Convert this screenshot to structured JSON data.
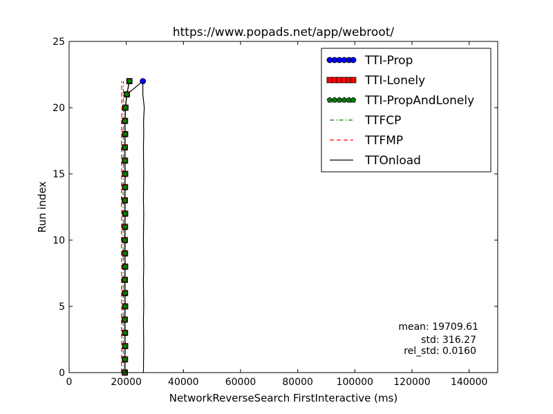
{
  "chart_data": {
    "type": "line",
    "title": "https://www.popads.net/app/webroot/",
    "xlabel": "NetworkReverseSearch FirstInteractive (ms)",
    "ylabel": "Run index",
    "xlim": [
      0,
      150000
    ],
    "ylim": [
      0,
      25
    ],
    "xticks": [
      0,
      20000,
      40000,
      60000,
      80000,
      100000,
      120000,
      140000
    ],
    "xtick_labels": [
      "0",
      "20000",
      "40000",
      "60000",
      "80000",
      "100000",
      "120000",
      "140000"
    ],
    "yticks": [
      0,
      5,
      10,
      15,
      20,
      25
    ],
    "ytick_labels": [
      "0",
      "5",
      "10",
      "15",
      "20",
      "25"
    ],
    "grid": false,
    "legend_position": "top-right",
    "y": [
      0,
      1,
      2,
      3,
      4,
      5,
      6,
      7,
      8,
      9,
      10,
      11,
      12,
      13,
      14,
      15,
      16,
      17,
      18,
      19,
      20,
      21,
      22
    ],
    "series": [
      {
        "name": "TTI-Prop",
        "color": "#0000ff",
        "marker": "circle",
        "line": "solid",
        "x": [
          19500,
          19550,
          19600,
          19550,
          19500,
          19600,
          19550,
          19500,
          19600,
          19550,
          19500,
          19550,
          19600,
          19500,
          19550,
          19600,
          19550,
          19500,
          19600,
          19550,
          19700,
          20200,
          25800
        ]
      },
      {
        "name": "TTI-Lonely",
        "color": "#ff0000",
        "marker": "square",
        "line": "solid",
        "x": [
          19500,
          19550,
          19600,
          19550,
          19500,
          19600,
          19550,
          19500,
          19600,
          19550,
          19500,
          19550,
          19600,
          19500,
          19550,
          19600,
          19550,
          19500,
          19600,
          19550,
          19700,
          20200,
          21100
        ]
      },
      {
        "name": "TTI-PropAndLonely",
        "color": "#008000",
        "marker": "pentagon",
        "line": "solid",
        "x": [
          19500,
          19550,
          19600,
          19550,
          19500,
          19600,
          19550,
          19500,
          19600,
          19550,
          19500,
          19550,
          19600,
          19500,
          19550,
          19600,
          19550,
          19500,
          19600,
          19550,
          19700,
          20200,
          21100
        ]
      },
      {
        "name": "TTFCP",
        "color": "#008000",
        "marker": "none",
        "line": "dashdot",
        "x": [
          18900,
          18950,
          19000,
          18950,
          18900,
          19000,
          18950,
          18900,
          19000,
          18950,
          18900,
          18950,
          19000,
          18900,
          18950,
          19000,
          18950,
          18900,
          19000,
          18950,
          19100,
          19000,
          19000
        ]
      },
      {
        "name": "TTFMP",
        "color": "#ff0000",
        "marker": "none",
        "line": "dashed",
        "x": [
          18300,
          18350,
          18400,
          18350,
          18300,
          18400,
          18350,
          18300,
          18400,
          18350,
          18300,
          18350,
          18400,
          18300,
          18350,
          18400,
          18350,
          18300,
          18400,
          18350,
          18500,
          18400,
          18400
        ]
      },
      {
        "name": "TTOnload",
        "color": "#000000",
        "marker": "none",
        "line": "solid",
        "x": [
          26000,
          26050,
          26100,
          26050,
          26000,
          26100,
          26050,
          26000,
          26100,
          26050,
          26000,
          26050,
          26100,
          26000,
          26050,
          26100,
          26050,
          26000,
          26100,
          26050,
          26300,
          25800,
          25800
        ]
      }
    ],
    "annotations": [
      "mean: 19709.61",
      "std: 316.27",
      "rel_std: 0.0160"
    ]
  }
}
